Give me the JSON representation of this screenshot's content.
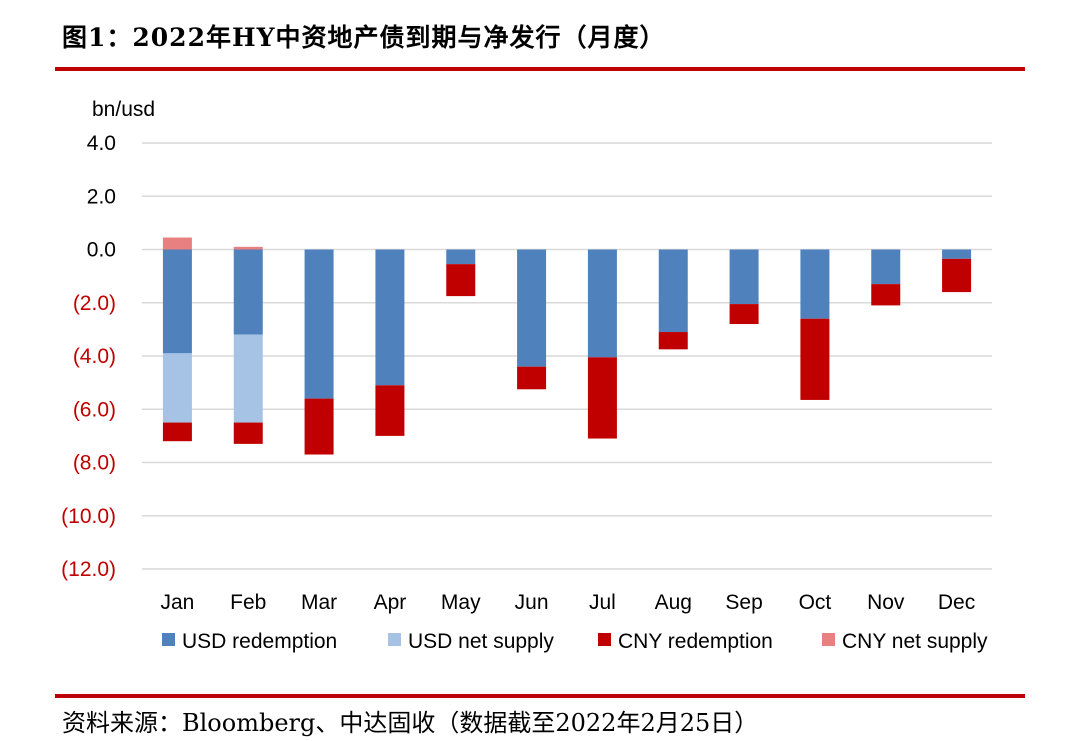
{
  "header": {
    "title": "图1：2022年HY中资地产债到期与净发行（月度）"
  },
  "footer": {
    "source": "资料来源：Bloomberg、中达固收（数据截至2022年2月25日）"
  },
  "colors": {
    "usd_redemption": "#4f81bd",
    "usd_net_supply": "#a6c3e6",
    "cny_redemption": "#c00000",
    "cny_net_supply": "#e98080",
    "negative_label": "#c00000",
    "grid": "#d9d9d9",
    "rule": "#c00000"
  },
  "chart_data": {
    "type": "bar",
    "stacked": true,
    "unit_label": "bn/usd",
    "categories": [
      "Jan",
      "Feb",
      "Mar",
      "Apr",
      "May",
      "Jun",
      "Jul",
      "Aug",
      "Sep",
      "Oct",
      "Nov",
      "Dec"
    ],
    "ylim": [
      -12,
      4
    ],
    "yticks": [
      {
        "value": 4,
        "label": "4.0"
      },
      {
        "value": 2,
        "label": "2.0"
      },
      {
        "value": 0,
        "label": "0.0"
      },
      {
        "value": -2,
        "label": "(2.0)"
      },
      {
        "value": -4,
        "label": "(4.0)"
      },
      {
        "value": -6,
        "label": "(6.0)"
      },
      {
        "value": -8,
        "label": "(8.0)"
      },
      {
        "value": -10,
        "label": "(10.0)"
      },
      {
        "value": -12,
        "label": "(12.0)"
      }
    ],
    "grid": true,
    "legend_position": "bottom",
    "series": [
      {
        "name": "USD redemption",
        "key": "usd_redemption",
        "values": [
          -3.9,
          -3.2,
          -5.6,
          -5.1,
          -0.55,
          -4.4,
          -4.05,
          -3.1,
          -2.05,
          -2.6,
          -1.3,
          -0.35
        ]
      },
      {
        "name": "USD net supply",
        "key": "usd_net_supply",
        "values": [
          -2.6,
          -3.3,
          0,
          0,
          0,
          0,
          0,
          0,
          0,
          0,
          0,
          0
        ]
      },
      {
        "name": "CNY redemption",
        "key": "cny_redemption",
        "values": [
          -0.7,
          -0.8,
          -2.1,
          -1.9,
          -1.2,
          -0.85,
          -3.05,
          -0.65,
          -0.75,
          -3.05,
          -0.8,
          -1.25
        ]
      },
      {
        "name": "CNY net supply",
        "key": "cny_net_supply",
        "values": [
          0.45,
          0.1,
          0,
          0,
          0,
          0,
          0,
          0,
          0,
          0,
          0,
          0
        ]
      }
    ]
  }
}
